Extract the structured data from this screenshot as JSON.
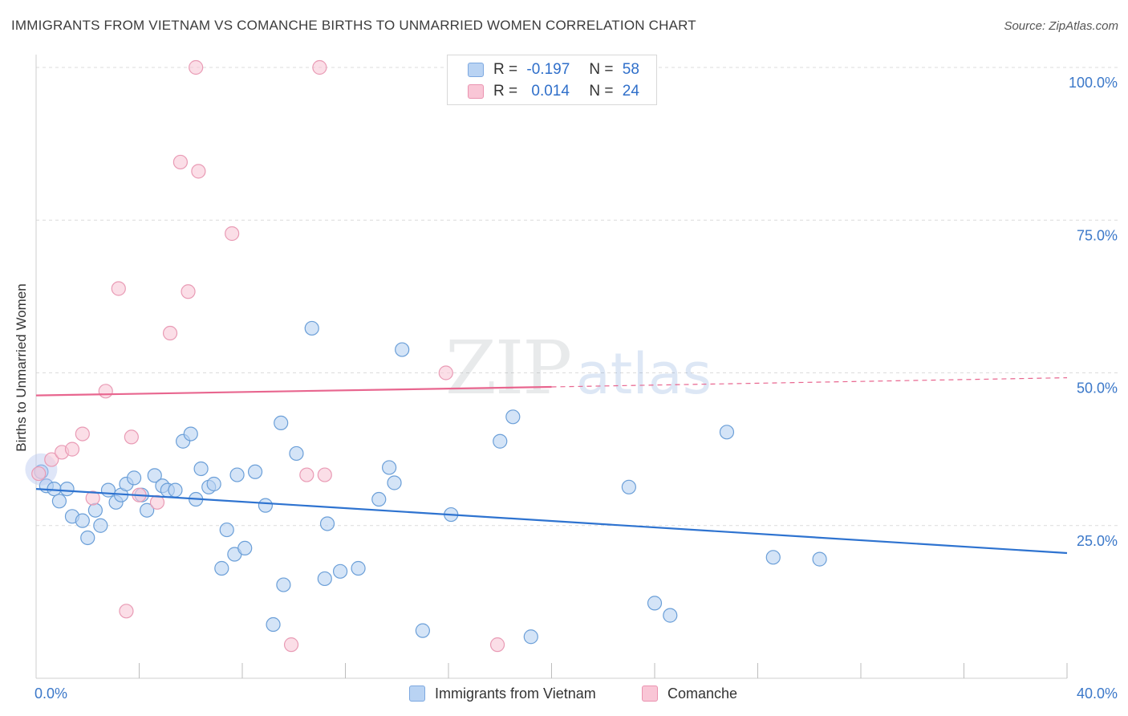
{
  "chart_data": {
    "type": "scatter",
    "title": "IMMIGRANTS FROM VIETNAM VS COMANCHE BIRTHS TO UNMARRIED WOMEN CORRELATION CHART",
    "source": "Source: ZipAtlas.com",
    "ylabel": "Births to Unmarried Women",
    "xlim": [
      0,
      40
    ],
    "ylim": [
      0,
      100
    ],
    "x_ticks": [
      "0.0%",
      "40.0%"
    ],
    "y_ticks": [
      {
        "value": 100,
        "label": "100.0%"
      },
      {
        "value": 75,
        "label": "75.0%"
      },
      {
        "value": 50,
        "label": "50.0%"
      },
      {
        "value": 25,
        "label": "25.0%"
      }
    ],
    "grid": true,
    "watermark": "ZIPatlas",
    "legend_stats": [
      {
        "r_label": "R =",
        "r": "-0.197",
        "n_label": "N =",
        "n": "58",
        "color": "#b9d3f3",
        "border": "#7da8e0"
      },
      {
        "r_label": "R =",
        "r": "0.014",
        "n_label": "N =",
        "n": "24",
        "color": "#f9c6d6",
        "border": "#ea93b0"
      }
    ],
    "series": [
      {
        "name": "Immigrants from Vietnam",
        "color": "#b8d2f2",
        "stroke": "#6b9fd8",
        "trend_color": "#2e73d0",
        "trend": {
          "x0": 0,
          "y0": 31.0,
          "x1": 40,
          "y1": 20.5
        },
        "points": [
          [
            0.2,
            33.8
          ],
          [
            0.4,
            31.5
          ],
          [
            0.7,
            31.0
          ],
          [
            0.9,
            29.0
          ],
          [
            1.2,
            31.0
          ],
          [
            1.4,
            26.5
          ],
          [
            1.8,
            25.8
          ],
          [
            2.0,
            23.0
          ],
          [
            2.3,
            27.5
          ],
          [
            2.5,
            25.0
          ],
          [
            2.8,
            30.8
          ],
          [
            3.1,
            28.8
          ],
          [
            3.3,
            30.0
          ],
          [
            3.5,
            31.8
          ],
          [
            3.8,
            32.8
          ],
          [
            4.1,
            30.0
          ],
          [
            4.3,
            27.5
          ],
          [
            4.6,
            33.2
          ],
          [
            4.9,
            31.5
          ],
          [
            5.1,
            30.8
          ],
          [
            5.4,
            30.8
          ],
          [
            5.7,
            38.8
          ],
          [
            6.0,
            40.0
          ],
          [
            6.2,
            29.3
          ],
          [
            6.4,
            34.3
          ],
          [
            6.7,
            31.3
          ],
          [
            6.9,
            31.8
          ],
          [
            7.2,
            18.0
          ],
          [
            7.4,
            24.3
          ],
          [
            7.7,
            20.3
          ],
          [
            7.8,
            33.3
          ],
          [
            8.1,
            21.3
          ],
          [
            8.5,
            33.8
          ],
          [
            8.9,
            28.3
          ],
          [
            9.2,
            8.8
          ],
          [
            9.5,
            41.8
          ],
          [
            9.6,
            15.3
          ],
          [
            10.1,
            36.8
          ],
          [
            10.7,
            57.3
          ],
          [
            11.2,
            16.3
          ],
          [
            11.3,
            25.3
          ],
          [
            11.8,
            17.5
          ],
          [
            12.5,
            18.0
          ],
          [
            13.3,
            29.3
          ],
          [
            13.7,
            34.5
          ],
          [
            13.9,
            32.0
          ],
          [
            14.2,
            53.8
          ],
          [
            15.0,
            7.8
          ],
          [
            16.1,
            26.8
          ],
          [
            18.0,
            38.8
          ],
          [
            18.5,
            42.8
          ],
          [
            19.2,
            6.8
          ],
          [
            23.0,
            31.3
          ],
          [
            24.0,
            12.3
          ],
          [
            24.6,
            10.3
          ],
          [
            26.8,
            40.3
          ],
          [
            28.6,
            19.8
          ],
          [
            30.4,
            19.5
          ]
        ]
      },
      {
        "name": "Comanche",
        "color": "#f9c8d7",
        "stroke": "#e99bb5",
        "trend_color": "#e8668f",
        "trend": {
          "x0": 0,
          "y0": 46.3,
          "x1": 20,
          "y1": 47.7
        },
        "trend_ext": {
          "x0": 20,
          "y0": 47.7,
          "x1": 40,
          "y1": 49.2
        },
        "points": [
          [
            0.1,
            33.5
          ],
          [
            0.6,
            35.8
          ],
          [
            1.0,
            37.0
          ],
          [
            1.4,
            37.5
          ],
          [
            1.8,
            40.0
          ],
          [
            2.2,
            29.5
          ],
          [
            2.7,
            47.0
          ],
          [
            3.2,
            63.8
          ],
          [
            3.5,
            11.0
          ],
          [
            3.7,
            39.5
          ],
          [
            4.0,
            30.0
          ],
          [
            4.7,
            28.8
          ],
          [
            5.2,
            56.5
          ],
          [
            5.6,
            84.5
          ],
          [
            5.9,
            63.3
          ],
          [
            6.2,
            100.0
          ],
          [
            6.3,
            83.0
          ],
          [
            7.6,
            72.8
          ],
          [
            9.9,
            5.5
          ],
          [
            10.5,
            33.3
          ],
          [
            11.0,
            100.0
          ],
          [
            11.2,
            33.3
          ],
          [
            15.9,
            50.0
          ],
          [
            17.9,
            5.5
          ]
        ]
      }
    ]
  }
}
